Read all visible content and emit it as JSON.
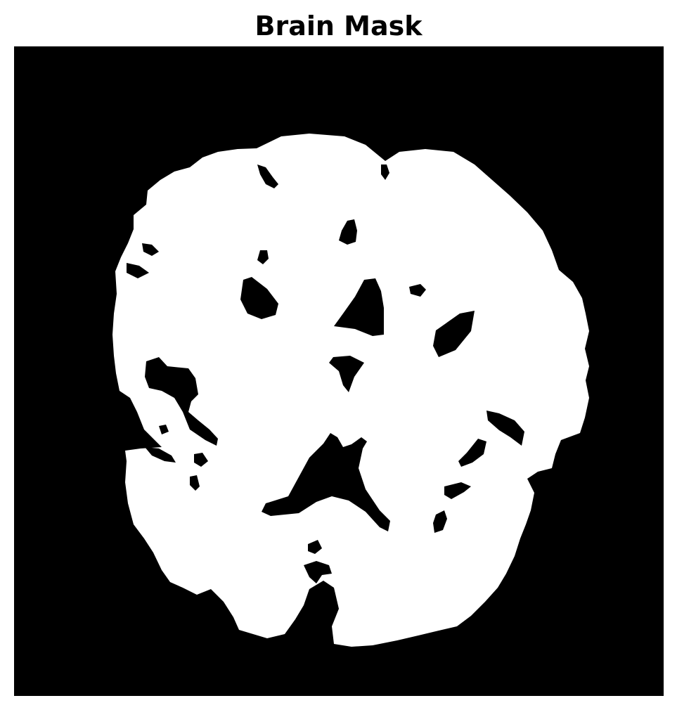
{
  "figure": {
    "title": "Brain Mask",
    "background_color": "#000000",
    "mask_color": "#ffffff"
  }
}
